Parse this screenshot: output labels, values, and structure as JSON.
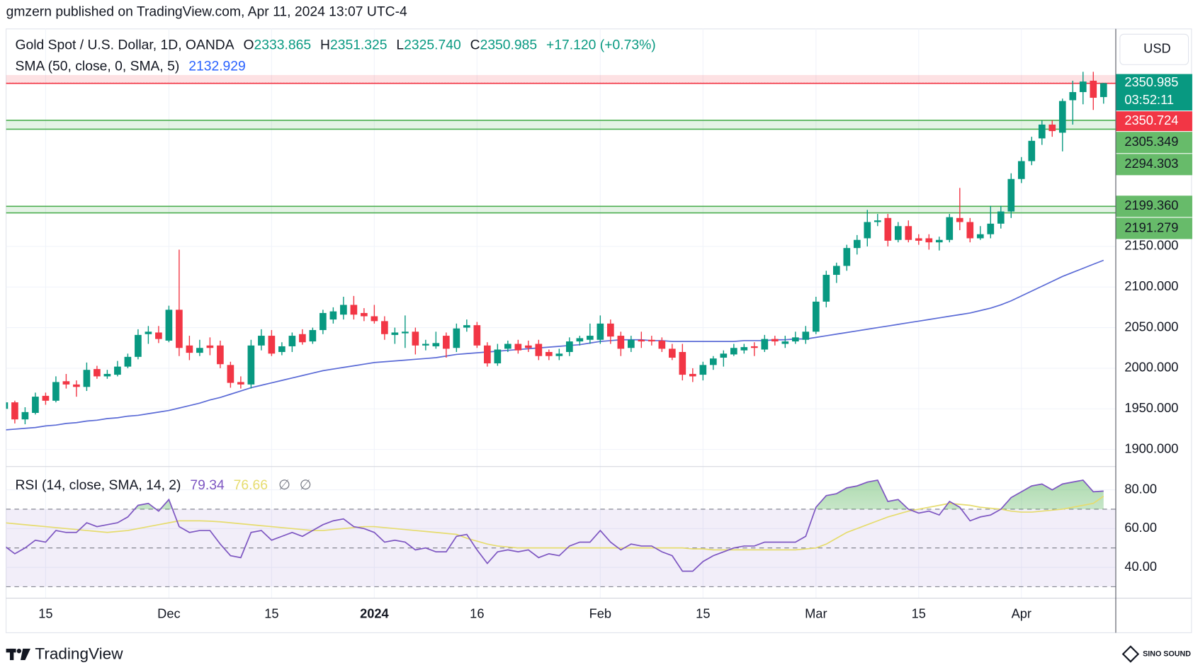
{
  "chart_data": {
    "type": "candlestick",
    "published": "gmzern published on TradingView.com, Apr 11, 2024 13:07 UTC-4",
    "symbol": "Gold Spot / U.S. Dollar, 1D, OANDA",
    "ohlc_legend": [
      {
        "key": "O",
        "value": "2333.865"
      },
      {
        "key": "H",
        "value": "2351.325"
      },
      {
        "key": "L",
        "value": "2325.740"
      },
      {
        "key": "C",
        "value": "2350.985"
      }
    ],
    "change": "+17.120 (+0.73%)",
    "currency": "USD",
    "up_color": "#089981",
    "down_color": "#f23645",
    "grid": true,
    "xlim": [
      0.15,
      108.15
    ],
    "xticks": [
      {
        "value": 4,
        "label": "15"
      },
      {
        "value": 16,
        "label": "Dec"
      },
      {
        "value": 26,
        "label": "15"
      },
      {
        "value": 36,
        "label": "2024",
        "bold": true
      },
      {
        "value": 46,
        "label": "16"
      },
      {
        "value": 58,
        "label": "Feb"
      },
      {
        "value": 68,
        "label": "15"
      },
      {
        "value": 79,
        "label": "Mar"
      },
      {
        "value": 89,
        "label": "15"
      },
      {
        "value": 99,
        "label": "Apr"
      }
    ],
    "ylim": [
      1879.4,
      2417.8
    ],
    "yticks": [
      {
        "value": 1900,
        "label": "1900.000"
      },
      {
        "value": 1950,
        "label": "1950.000"
      },
      {
        "value": 2000,
        "label": "2000.000"
      },
      {
        "value": 2050,
        "label": "2050.000"
      },
      {
        "value": 2100,
        "label": "2100.000"
      },
      {
        "value": 2150,
        "label": "2150.000"
      }
    ],
    "open": [
      1950,
      1958,
      1937,
      1945,
      1966,
      1960,
      1984,
      1980,
      1977,
      1999,
      1990,
      1992,
      2002,
      2014,
      2042,
      2044,
      2034,
      2072,
      2028,
      2019,
      2028,
      2028,
      2004,
      1983,
      1980,
      2028,
      2040,
      2020,
      2027,
      2042,
      2033,
      2047,
      2060,
      2066,
      2078,
      2068,
      2064,
      2058,
      2041,
      2043,
      2045,
      2028,
      2027,
      2040,
      2025,
      2050,
      2053,
      2028,
      2006,
      2024,
      2030,
      2028,
      2030,
      2020,
      2015,
      2020,
      2033,
      2035,
      2035,
      2055,
      2040,
      2025,
      2035,
      2035,
      2034,
      2024,
      2020,
      1993,
      1992,
      2004,
      2013,
      2017,
      2022,
      2027,
      2023,
      2036,
      2030,
      2033,
      2035,
      2045,
      2082,
      2115,
      2126,
      2148,
      2160,
      2180,
      2185,
      2158,
      2175,
      2160,
      2160,
      2155,
      2158,
      2185,
      2180,
      2160,
      2165,
      2178,
      2193,
      2233,
      2255,
      2283,
      2300,
      2290,
      2330,
      2340,
      2354,
      2333.865
    ],
    "high": [
      1962,
      1960,
      1952,
      1970,
      1970,
      1990,
      1993,
      1985,
      2007,
      2003,
      1998,
      2009,
      2018,
      2048,
      2052,
      2052,
      2077,
      2146,
      2040,
      2035,
      2038,
      2034,
      2008,
      1990,
      2035,
      2048,
      2047,
      2032,
      2044,
      2048,
      2050,
      2072,
      2075,
      2088,
      2089,
      2074,
      2078,
      2064,
      2050,
      2065,
      2050,
      2035,
      2045,
      2044,
      2055,
      2060,
      2057,
      2032,
      2030,
      2034,
      2035,
      2034,
      2035,
      2023,
      2024,
      2038,
      2040,
      2055,
      2065,
      2060,
      2045,
      2040,
      2045,
      2040,
      2038,
      2030,
      2030,
      2000,
      2008,
      2015,
      2022,
      2030,
      2030,
      2032,
      2041,
      2040,
      2040,
      2045,
      2052,
      2088,
      2120,
      2130,
      2152,
      2164,
      2195,
      2190,
      2190,
      2180,
      2182,
      2165,
      2165,
      2162,
      2190,
      2222,
      2185,
      2175,
      2200,
      2200,
      2240,
      2260,
      2285,
      2305,
      2305,
      2332,
      2354,
      2365,
      2365,
      2351.325
    ],
    "low": [
      1945,
      1932,
      1931,
      1943,
      1955,
      1958,
      1975,
      1965,
      1972,
      1987,
      1987,
      1990,
      2000,
      2011,
      2030,
      2031,
      2032,
      2015,
      2010,
      2015,
      2016,
      2000,
      1976,
      1975,
      1975,
      2022,
      2015,
      2016,
      2020,
      2029,
      2030,
      2042,
      2055,
      2060,
      2060,
      2058,
      2055,
      2035,
      2030,
      2025,
      2017,
      2022,
      2024,
      2013,
      2020,
      2045,
      2025,
      2002,
      2003,
      2020,
      2018,
      2020,
      2010,
      2010,
      2010,
      2015,
      2028,
      2030,
      2030,
      2030,
      2015,
      2020,
      2025,
      2028,
      2020,
      2010,
      1985,
      1983,
      1985,
      1998,
      2002,
      2015,
      2018,
      2015,
      2020,
      2028,
      2025,
      2030,
      2030,
      2042,
      2075,
      2105,
      2120,
      2140,
      2150,
      2175,
      2150,
      2155,
      2155,
      2152,
      2146,
      2145,
      2155,
      2170,
      2155,
      2158,
      2160,
      2172,
      2185,
      2228,
      2250,
      2275,
      2285,
      2267,
      2300,
      2325,
      2318,
      2325.74
    ],
    "close": [
      1958,
      1937,
      1946,
      1965,
      1960,
      1983,
      1980,
      1977,
      1998,
      1990,
      1993,
      2002,
      2014,
      2041,
      2045,
      2036,
      2072,
      2025,
      2019,
      2025,
      2025,
      2005,
      1982,
      1980,
      2028,
      2040,
      2018,
      2027,
      2040,
      2032,
      2047,
      2068,
      2070,
      2078,
      2066,
      2064,
      2058,
      2042,
      2044,
      2045,
      2028,
      2030,
      2031,
      2024,
      2049,
      2053,
      2028,
      2006,
      2023,
      2030,
      2022,
      2025,
      2015,
      2015,
      2018,
      2033,
      2037,
      2040,
      2055,
      2039,
      2024,
      2035,
      2033,
      2033,
      2024,
      2013,
      1992,
      1990,
      2004,
      2012,
      2018,
      2025,
      2026,
      2025,
      2036,
      2033,
      2033,
      2038,
      2045,
      2082,
      2115,
      2126,
      2148,
      2158,
      2180,
      2182,
      2157,
      2175,
      2158,
      2157,
      2155,
      2158,
      2186,
      2180,
      2160,
      2165,
      2178,
      2193,
      2233,
      2255,
      2280,
      2300,
      2292,
      2329,
      2340,
      2353,
      2333,
      2350.985
    ],
    "sma": {
      "name": "SMA (50, close, 0, SMA, 5)",
      "value_label": "2132.929",
      "color": "#5b6bd6",
      "values": [
        1924,
        1925,
        1926,
        1927,
        1929,
        1930,
        1932,
        1933,
        1935,
        1936,
        1938,
        1939,
        1941,
        1942,
        1944,
        1946,
        1948,
        1951,
        1954,
        1957,
        1961,
        1964,
        1968,
        1972,
        1976,
        1979,
        1982,
        1985,
        1988,
        1991,
        1994,
        1997,
        1999,
        2001,
        2003,
        2005,
        2007,
        2008,
        2009,
        2010,
        2011,
        2012,
        2013,
        2015,
        2017,
        2018,
        2019,
        2020,
        2021,
        2022,
        2023,
        2024,
        2025,
        2026,
        2027,
        2028,
        2029,
        2031,
        2033,
        2034,
        2035,
        2035,
        2035,
        2034,
        2034,
        2033,
        2033,
        2033,
        2033,
        2033,
        2033,
        2033,
        2034,
        2034,
        2034,
        2035,
        2035,
        2036,
        2036,
        2038,
        2040,
        2042,
        2044,
        2046,
        2048,
        2050,
        2052,
        2054,
        2056,
        2058,
        2060,
        2062,
        2064,
        2066,
        2068,
        2071,
        2074,
        2078,
        2083,
        2089,
        2095,
        2101,
        2107,
        2113,
        2118,
        2123,
        2128,
        2132.929
      ]
    },
    "price_line": {
      "value": 2350.985,
      "label": "2350.985",
      "countdown": "03:52:11",
      "color": "#089981"
    },
    "levels": [
      {
        "value": 2350.724,
        "label": "2350.724",
        "color": "#f23645"
      }
    ],
    "zones": [
      {
        "color": "#4caf50",
        "bounds": [
          {
            "value": 2305.349,
            "label": "2305.349"
          },
          {
            "value": 2294.303,
            "label": "2294.303"
          }
        ]
      },
      {
        "color": "#4caf50",
        "bounds": [
          {
            "value": 2199.36,
            "label": "2199.360"
          },
          {
            "value": 2191.279,
            "label": "2191.279"
          }
        ]
      }
    ],
    "rsi": {
      "name": "RSI (14, close, SMA, 14, 2)",
      "value_label": "79.34",
      "color": "#7e57c2",
      "values": [
        51,
        47,
        50,
        54,
        53,
        59,
        58,
        58,
        63,
        61,
        62,
        63,
        66,
        72,
        73,
        69,
        75,
        61,
        58,
        59,
        59,
        52,
        46,
        45,
        58,
        59,
        54,
        56,
        58,
        56,
        59,
        62,
        64,
        65,
        61,
        60,
        58,
        53,
        54,
        53,
        49,
        50,
        48,
        48,
        56,
        57,
        49,
        42,
        48,
        49,
        48,
        49,
        45,
        47,
        46,
        51,
        53,
        53,
        59,
        53,
        49,
        52,
        51,
        51,
        48,
        46,
        38,
        38,
        43,
        46,
        48,
        50,
        51,
        51,
        53,
        53,
        53,
        53,
        56,
        71,
        77,
        78,
        81,
        82,
        84,
        85,
        74,
        75,
        70,
        68,
        69,
        67,
        74,
        71,
        64,
        66,
        67,
        70,
        76,
        79,
        82,
        83,
        80,
        83,
        84,
        85,
        79,
        79.34
      ],
      "ma": {
        "value_label": "76.66",
        "color": "#e6dc6e",
        "values": [
          63,
          62.5,
          62,
          61.5,
          61,
          60.5,
          60,
          59.5,
          59,
          58.5,
          58,
          58.5,
          59,
          60,
          61,
          62,
          63,
          64,
          64,
          64,
          63.8,
          63.5,
          63,
          62.5,
          62,
          61.5,
          61,
          60.5,
          60,
          59.5,
          59,
          59,
          59.5,
          60,
          60.5,
          61,
          61,
          60.5,
          60,
          59.5,
          59,
          58.5,
          58,
          57.5,
          57,
          55,
          53.5,
          52,
          51,
          50.5,
          50,
          50,
          50,
          50,
          50,
          50,
          50,
          50,
          50,
          50,
          50,
          50,
          50,
          50,
          50,
          50,
          50,
          49.5,
          49.5,
          49,
          49,
          49,
          49,
          49,
          49,
          49,
          49,
          49,
          49.5,
          50,
          52,
          55,
          58,
          60,
          62,
          64,
          66,
          67.5,
          69,
          70,
          71,
          72,
          73,
          72.5,
          72,
          71,
          70.5,
          70,
          69,
          68.5,
          68.5,
          69,
          69.5,
          70,
          71,
          72,
          73,
          76.66
        ]
      },
      "extras": [
        "∅",
        "∅"
      ],
      "ylim": [
        24.3,
        91.8
      ],
      "yticks": [
        {
          "value": 80,
          "label": "80.00"
        },
        {
          "value": 60,
          "label": "60.00"
        },
        {
          "value": 40,
          "label": "40.00"
        }
      ],
      "levels": [
        70,
        50,
        30
      ],
      "overbought_fill": "#4caf50",
      "band_fill": "#7e57c2"
    },
    "brand": "TradingView",
    "watermark": "SINO SOUND"
  }
}
